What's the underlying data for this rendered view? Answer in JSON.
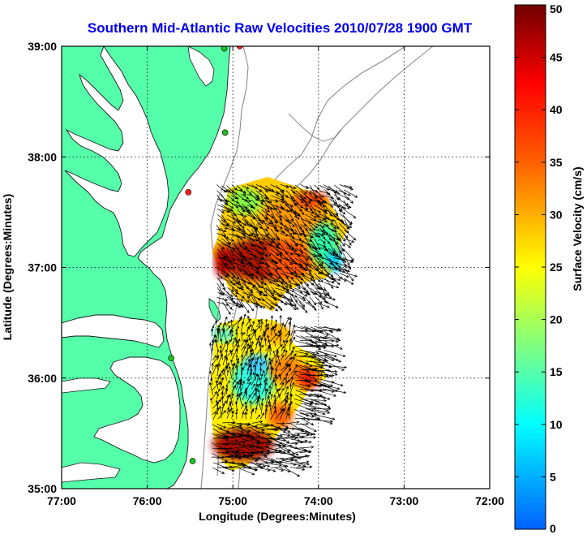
{
  "map": {
    "title": "Southern Mid-Atlantic Raw Velocities 2010/07/28 1900 GMT",
    "title_color": "#0000ee",
    "xlabel": "Longitude (Degrees:Minutes)",
    "ylabel": "Latitude (Degrees:Minutes)",
    "x_ticks": [
      "77:00",
      "76:00",
      "75:00",
      "74:00",
      "73:00",
      "72:00"
    ],
    "x_tick_values": [
      -77,
      -76,
      -75,
      -74,
      -73,
      -72
    ],
    "y_ticks": [
      "39:00",
      "38:00",
      "37:00",
      "36:00",
      "35:00"
    ],
    "y_tick_values": [
      39,
      38,
      37,
      36,
      35
    ],
    "xlim": [
      -77,
      -72
    ],
    "ylim": [
      35,
      39
    ],
    "grid": "dotted",
    "land_color": "#55ffaa",
    "coast_color": "#1a1a1a",
    "bathymetry_color": "#8c8c8c"
  },
  "colorbar": {
    "label": "Surface Velocity (cm/s)",
    "ticks": [
      "0",
      "5",
      "10",
      "15",
      "20",
      "25",
      "30",
      "35",
      "40",
      "45",
      "50"
    ],
    "tick_values": [
      0,
      5,
      10,
      15,
      20,
      25,
      30,
      35,
      40,
      45,
      50
    ],
    "range": [
      0,
      50
    ],
    "palette": [
      "#0060ff",
      "#00ffff",
      "#ffff00",
      "#ff6000",
      "#ff0000",
      "#700000"
    ]
  },
  "stations": [
    {
      "lon": -74.92,
      "lat": 39.0,
      "color": "#ff2020"
    },
    {
      "lon": -75.1,
      "lat": 38.98,
      "color": "#20c020"
    },
    {
      "lon": -75.09,
      "lat": 38.22,
      "color": "#20c020"
    },
    {
      "lon": -75.52,
      "lat": 37.68,
      "color": "#ff2020"
    },
    {
      "lon": -75.72,
      "lat": 36.18,
      "color": "#20c020"
    },
    {
      "lon": -75.47,
      "lat": 35.25,
      "color": "#20c020"
    }
  ]
}
